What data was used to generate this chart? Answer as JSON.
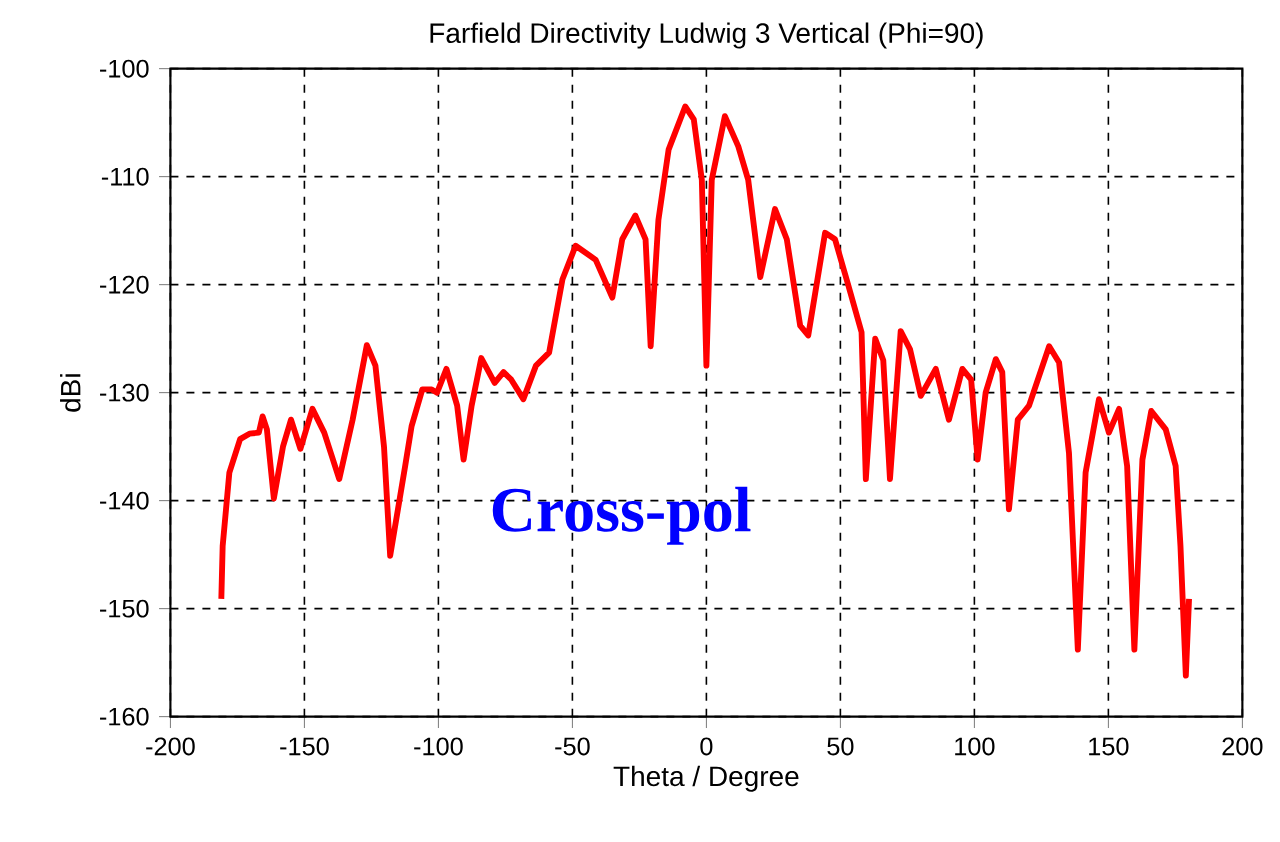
{
  "chart_data": {
    "type": "line",
    "title": "Farfield Directivity Ludwig 3 Vertical (Phi=90)",
    "xlabel": "Theta / Degree",
    "ylabel": "dBi",
    "annotations": [
      "Cross-pol"
    ],
    "xlim": [
      -200,
      200
    ],
    "ylim": [
      -160,
      -100
    ],
    "xticks": [
      -200,
      -150,
      -100,
      -50,
      0,
      50,
      100,
      150,
      200
    ],
    "yticks": [
      -160,
      -150,
      -140,
      -130,
      -120,
      -110,
      -100
    ],
    "grid": true,
    "line_style": "solid",
    "marker": "none",
    "series": [
      {
        "color": "#ff0000",
        "x": [
          -181,
          -180.5,
          -178,
          -174,
          -170.5,
          -167,
          -165.6,
          -164,
          -161.4,
          -158,
          -155,
          -151.5,
          -147,
          -142.6,
          -137,
          -132,
          -126.7,
          -123.5,
          -120.3,
          -118,
          -112.4,
          -110,
          -106,
          -102.5,
          -100.5,
          -97,
          -93,
          -90.6,
          -87.6,
          -84,
          -79,
          -75.7,
          -72.8,
          -68.3,
          -63.6,
          -58.7,
          -53.7,
          -48.8,
          -41.3,
          -35.1,
          -31.4,
          -26.5,
          -22.7,
          -20.8,
          -17.9,
          -14.1,
          -7.9,
          -4.7,
          -1.7,
          0,
          2,
          6.9,
          11.9,
          15.6,
          20.1,
          25.6,
          30,
          35,
          38,
          44.3,
          48,
          53,
          57.9,
          59.5,
          63,
          66,
          68.5,
          72.5,
          76,
          80,
          85.6,
          90.5,
          95.5,
          98.8,
          101.2,
          104.2,
          108,
          110.4,
          112.9,
          116.2,
          120.4,
          127.9,
          131.6,
          135.3,
          138.6,
          141.5,
          146.5,
          150.2,
          154,
          157,
          159.7,
          162.7,
          166,
          171.4,
          175.1,
          176.9,
          178.9,
          180.1
        ],
        "values": [
          -149.1,
          -144.2,
          -137.4,
          -134.3,
          -133.8,
          -133.7,
          -132.2,
          -133.4,
          -139.8,
          -135,
          -132.5,
          -135.2,
          -131.5,
          -133.7,
          -138,
          -132.5,
          -125.6,
          -127.5,
          -135,
          -145.1,
          -136.8,
          -133.1,
          -129.7,
          -129.7,
          -130,
          -127.8,
          -131.2,
          -136.2,
          -131.2,
          -126.8,
          -129.1,
          -128.1,
          -128.8,
          -130.6,
          -127.5,
          -126.3,
          -119.5,
          -116.4,
          -117.7,
          -121.2,
          -115.8,
          -113.6,
          -115.8,
          -125.7,
          -114,
          -107.5,
          -103.5,
          -104.7,
          -110.3,
          -127.5,
          -110.3,
          -104.4,
          -107.2,
          -110.3,
          -119.3,
          -113,
          -115.8,
          -123.8,
          -124.7,
          -115.2,
          -115.8,
          -120.1,
          -124.4,
          -138,
          -125,
          -127,
          -138,
          -124.3,
          -126,
          -130.3,
          -127.8,
          -132.5,
          -127.8,
          -128.8,
          -136.2,
          -130,
          -126.9,
          -128.1,
          -140.8,
          -132.5,
          -131.2,
          -125.7,
          -127.2,
          -135.6,
          -153.8,
          -137.4,
          -130.6,
          -133.7,
          -131.5,
          -136.8,
          -153.8,
          -136.2,
          -131.7,
          -133.4,
          -136.8,
          -144.2,
          -156.2,
          -149.1
        ]
      }
    ]
  }
}
